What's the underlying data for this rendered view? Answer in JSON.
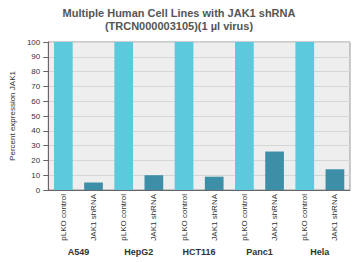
{
  "chart_data": {
    "type": "bar",
    "title": "Multiple Human Cell Lines with JAK1 shRNA",
    "subtitle": "(TRCN000003105)(1 µl virus)",
    "y_label": "Percent expression JAK1",
    "categories": [
      "pLKO control",
      "JAK1 shRNA",
      "pLKO control",
      "JAK1 shRNA",
      "pLKO control",
      "JAK1 shRNA",
      "pLKO control",
      "JAK1 shRNA",
      "pLKO control",
      "JAK1 shRNA"
    ],
    "groups": [
      "A549",
      "HepG2",
      "HCT116",
      "Panc1",
      "Hela"
    ],
    "values": [
      100,
      5,
      100,
      10,
      100,
      9,
      100,
      26,
      100,
      14
    ],
    "colors": [
      "#5cc9dd",
      "#3d8fa8",
      "#5cc9dd",
      "#3d8fa8",
      "#5cc9dd",
      "#3d8fa8",
      "#5cc9dd",
      "#3d8fa8",
      "#5cc9dd",
      "#3d8fa8"
    ],
    "ylim": [
      0,
      100
    ],
    "yticks": [
      0,
      10,
      20,
      30,
      40,
      50,
      60,
      70,
      80,
      90,
      100
    ],
    "grid": true
  }
}
